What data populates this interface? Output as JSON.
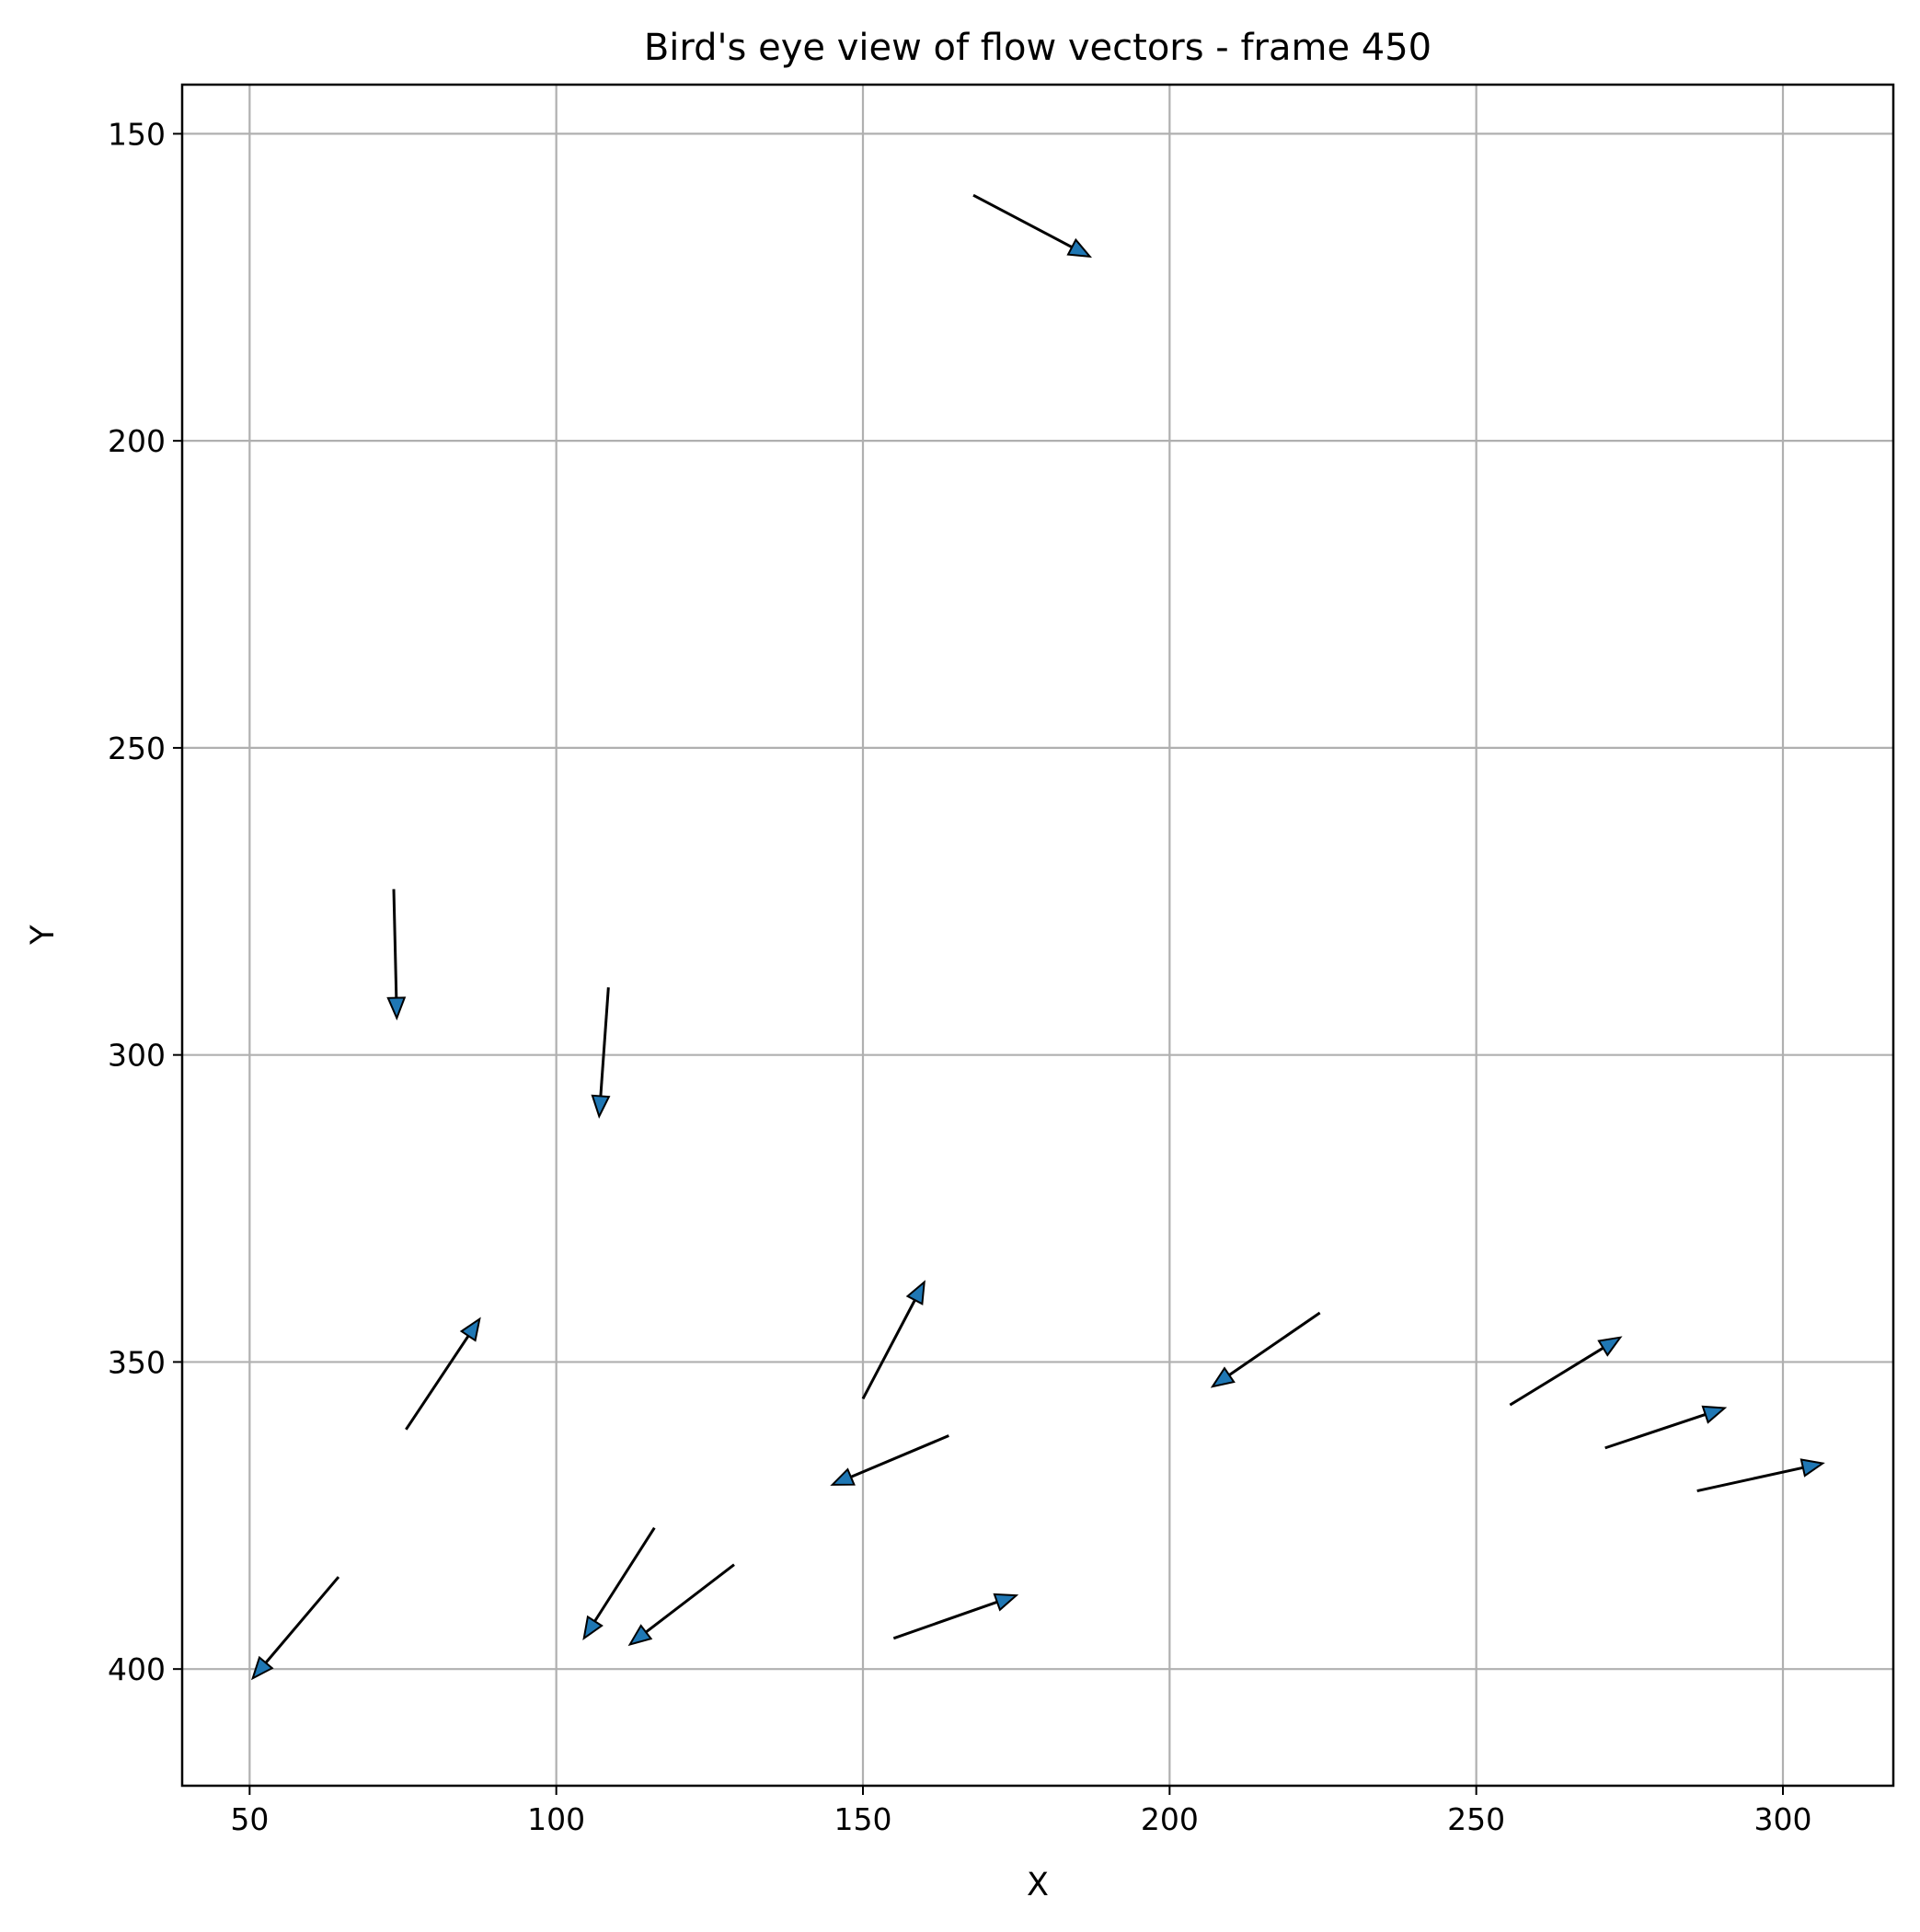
{
  "chart_data": {
    "type": "quiver",
    "title": "Bird's eye view of flow vectors - frame 450",
    "xlabel": "X",
    "ylabel": "Y",
    "xlim": [
      39,
      318
    ],
    "ylim": [
      419,
      142
    ],
    "y_inverted": true,
    "xticks": [
      50,
      100,
      150,
      200,
      250,
      300
    ],
    "yticks": [
      150,
      200,
      250,
      300,
      350,
      400
    ],
    "grid": true,
    "arrow_color": "#1f77b4",
    "arrow_edge_color": "#000000",
    "vectors": [
      {
        "x": 168,
        "y": 160,
        "u": 19,
        "v": 10
      },
      {
        "x": 73.5,
        "y": 273,
        "u": 0.5,
        "v": 21
      },
      {
        "x": 108.5,
        "y": 289,
        "u": -1.5,
        "v": 21
      },
      {
        "x": 75.5,
        "y": 361,
        "u": 12,
        "v": -18
      },
      {
        "x": 150,
        "y": 356,
        "u": 10,
        "v": -19
      },
      {
        "x": 224.5,
        "y": 342,
        "u": -17.5,
        "v": 12
      },
      {
        "x": 164,
        "y": 362,
        "u": -19,
        "v": 8
      },
      {
        "x": 255.5,
        "y": 357,
        "u": 18,
        "v": -11
      },
      {
        "x": 271,
        "y": 364,
        "u": 19.5,
        "v": -6.5
      },
      {
        "x": 286,
        "y": 371,
        "u": 20.5,
        "v": -4.5
      },
      {
        "x": 64.5,
        "y": 385,
        "u": -14,
        "v": 16.5
      },
      {
        "x": 116,
        "y": 377,
        "u": -11.5,
        "v": 18
      },
      {
        "x": 129,
        "y": 383,
        "u": -17,
        "v": 13
      },
      {
        "x": 155,
        "y": 395,
        "u": 20,
        "v": -7
      }
    ]
  }
}
